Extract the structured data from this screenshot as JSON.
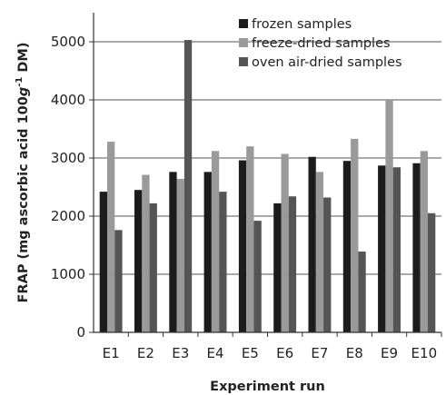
{
  "chart_data": {
    "type": "bar",
    "xlabel": "Experiment run",
    "ylabel": "FRAP (mg ascorbic acid 100g-1 DM)",
    "ylabel_parts": {
      "pre": "FRAP (mg ascorbic acid 100",
      "unit": "g",
      "sup": "-1",
      "post": " DM)"
    },
    "ylim": [
      0,
      5500
    ],
    "yticks": [
      "0",
      "1000",
      "2000",
      "3000",
      "4000",
      "5000"
    ],
    "categories": [
      "E1",
      "E2",
      "E3",
      "E4",
      "E5",
      "E6",
      "E7",
      "E8",
      "E9",
      "E10"
    ],
    "grid": true,
    "legend_position": "top-right",
    "series": [
      {
        "name": "frozen samples",
        "color": "#1c1c1c",
        "values": [
          2420,
          2450,
          2760,
          2760,
          2960,
          2220,
          3020,
          2950,
          2870,
          2910
        ]
      },
      {
        "name": "freeze-dried samples",
        "color": "#9a9a9a",
        "values": [
          3280,
          2710,
          2640,
          3120,
          3200,
          3070,
          2760,
          3330,
          4000,
          3120
        ]
      },
      {
        "name": "oven air-dried samples",
        "color": "#555555",
        "values": [
          1760,
          2220,
          5030,
          2420,
          1920,
          2340,
          2320,
          1390,
          2840,
          2050
        ]
      }
    ]
  }
}
